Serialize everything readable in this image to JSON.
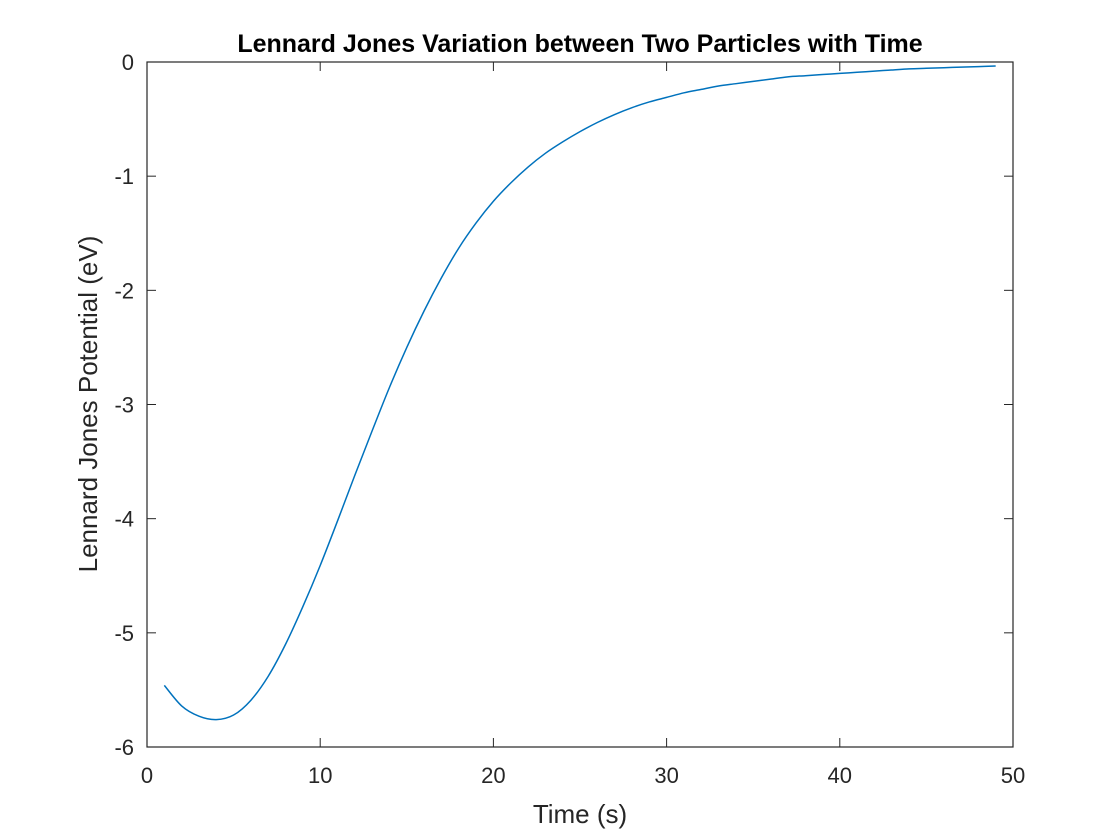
{
  "chart_data": {
    "type": "line",
    "title": "Lennard Jones Variation between Two Particles with Time",
    "xlabel": "Time (s)",
    "ylabel": "Lennard Jones Potential (eV)",
    "xlim": [
      0,
      50
    ],
    "ylim": [
      -6,
      0
    ],
    "xticks": [
      0,
      10,
      20,
      30,
      40,
      50
    ],
    "yticks": [
      -6,
      -5,
      -4,
      -3,
      -2,
      -1,
      0
    ],
    "grid": false,
    "legend": "none",
    "series": [
      {
        "color": "#0072bd",
        "x": [
          1,
          2,
          3,
          4,
          5,
          6,
          7,
          8,
          9,
          10,
          11,
          12,
          13,
          14,
          15,
          16,
          17,
          18,
          19,
          20,
          21,
          22,
          23,
          24,
          25,
          26,
          27,
          28,
          29,
          30,
          31,
          32,
          33,
          34,
          35,
          36,
          37,
          38,
          39,
          40,
          41,
          42,
          43,
          44,
          45,
          46,
          47,
          48,
          49
        ],
        "y": [
          -5.46,
          -5.64,
          -5.73,
          -5.76,
          -5.72,
          -5.59,
          -5.38,
          -5.1,
          -4.77,
          -4.41,
          -4.02,
          -3.62,
          -3.23,
          -2.85,
          -2.5,
          -2.18,
          -1.89,
          -1.63,
          -1.41,
          -1.22,
          -1.06,
          -0.92,
          -0.8,
          -0.7,
          -0.61,
          -0.53,
          -0.46,
          -0.4,
          -0.35,
          -0.31,
          -0.27,
          -0.24,
          -0.21,
          -0.19,
          -0.17,
          -0.15,
          -0.13,
          -0.12,
          -0.11,
          -0.1,
          -0.09,
          -0.08,
          -0.07,
          -0.06,
          -0.055,
          -0.05,
          -0.045,
          -0.04,
          -0.035
        ]
      }
    ]
  }
}
